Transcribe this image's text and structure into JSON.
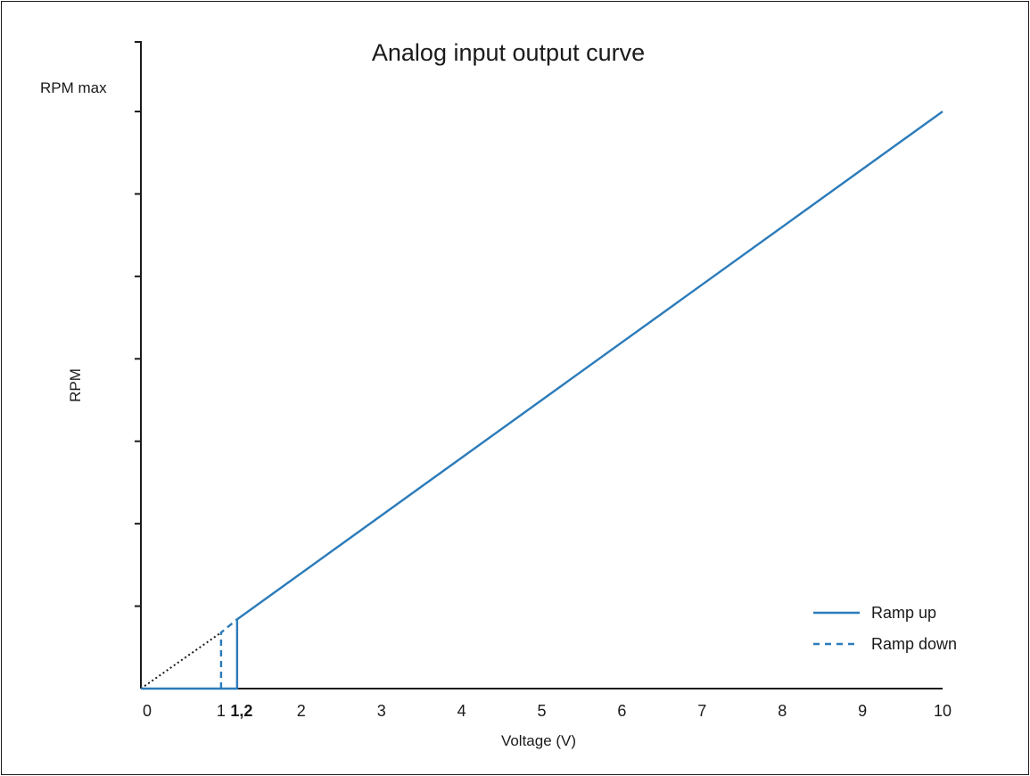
{
  "chart_data": {
    "type": "line",
    "title": "Analog input output curve",
    "xlabel": "Voltage (V)",
    "ylabel": "RPM",
    "y_max_label": "RPM max",
    "xlim": [
      0,
      10
    ],
    "ylim": [
      0,
      7
    ],
    "x_ticks": [
      {
        "value": 0,
        "label": "0"
      },
      {
        "value": 1,
        "label": "1"
      },
      {
        "value": 1.2,
        "label": "1,2",
        "bold": true
      },
      {
        "value": 2,
        "label": "2"
      },
      {
        "value": 3,
        "label": "3"
      },
      {
        "value": 4,
        "label": "4"
      },
      {
        "value": 5,
        "label": "5"
      },
      {
        "value": 6,
        "label": "6"
      },
      {
        "value": 7,
        "label": "7"
      },
      {
        "value": 8,
        "label": "8"
      },
      {
        "value": 9,
        "label": "9"
      },
      {
        "value": 10,
        "label": "10"
      }
    ],
    "y_tick_values": [
      1,
      2,
      3,
      4,
      5,
      6,
      7
    ],
    "series": [
      {
        "name": "Ramp up",
        "style": "solid",
        "color": "#2b7bba",
        "points": [
          [
            0,
            0
          ],
          [
            1.2,
            0
          ],
          [
            1.2,
            0.84
          ],
          [
            10,
            7.0
          ]
        ]
      },
      {
        "name": "Ramp down",
        "style": "dashed",
        "color": "#2b7bba",
        "points": [
          [
            1,
            0
          ],
          [
            1,
            0.68
          ],
          [
            1.2,
            0.84
          ]
        ]
      }
    ],
    "extrapolation": {
      "style": "dotted",
      "color": "#1a1a1a",
      "points": [
        [
          0,
          0
        ],
        [
          1,
          0.68
        ]
      ]
    },
    "legend_position": "bottom-right",
    "grid": false
  }
}
